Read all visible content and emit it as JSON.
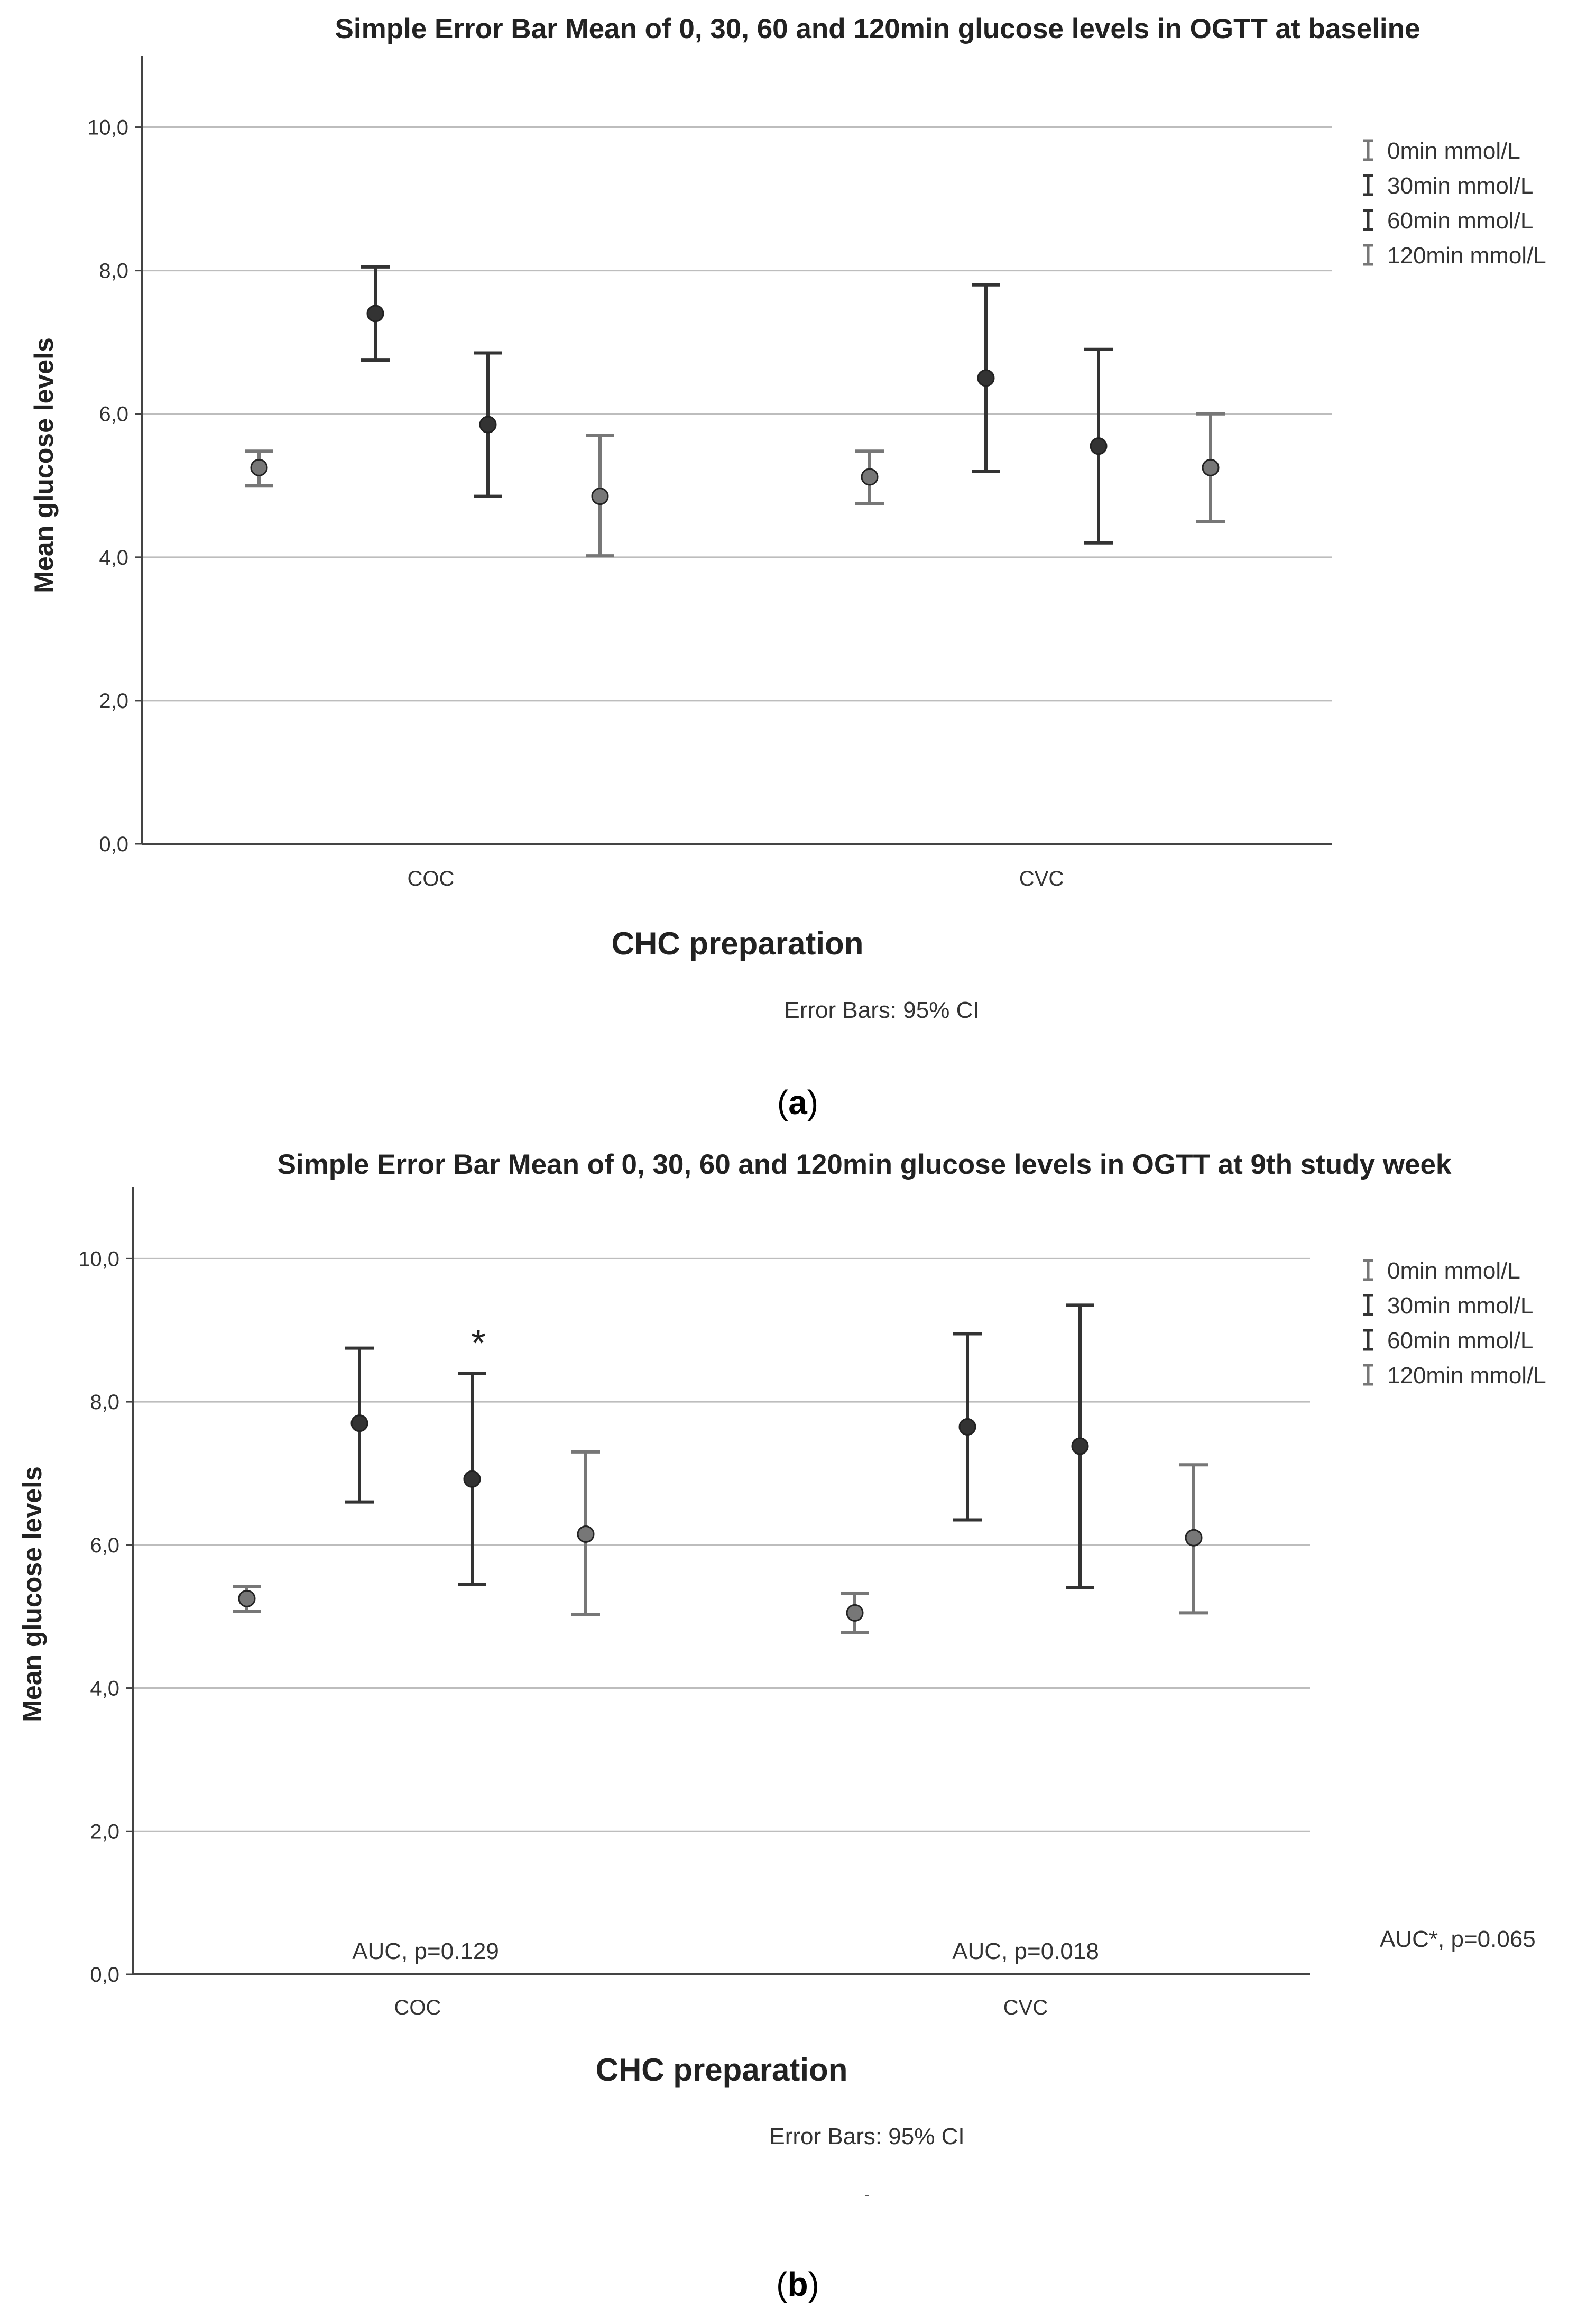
{
  "chart_data": [
    {
      "type": "errorbar",
      "panel_label": "a",
      "title": "Simple Error Bar Mean of 0, 30, 60 and 120min glucose levels in OGTT at baseline",
      "xlabel": "CHC preparation",
      "ylabel": "Mean glucose levels",
      "ylim": [
        0,
        11
      ],
      "yticks": [
        0,
        2,
        4,
        6,
        8,
        10
      ],
      "ytick_labels": [
        "0,0",
        "2,0",
        "4,0",
        "6,0",
        "8,0",
        "10,0"
      ],
      "grid": true,
      "legend_position": "right",
      "categories": [
        "COC",
        "CVC"
      ],
      "footnote": "Error Bars: 95% CI",
      "series": [
        {
          "name": "0min mmol/L",
          "color": "#777777",
          "mean": [
            5.25,
            5.12
          ],
          "lower": [
            5.0,
            4.75
          ],
          "upper": [
            5.48,
            5.48
          ]
        },
        {
          "name": "30min mmol/L",
          "color": "#333333",
          "mean": [
            7.4,
            6.5
          ],
          "lower": [
            6.75,
            5.2
          ],
          "upper": [
            8.05,
            7.8
          ]
        },
        {
          "name": "60min mmol/L",
          "color": "#333333",
          "mean": [
            5.85,
            5.55
          ],
          "lower": [
            4.85,
            4.2
          ],
          "upper": [
            6.85,
            6.9
          ]
        },
        {
          "name": "120min mmol/L",
          "color": "#777777",
          "mean": [
            4.85,
            5.25
          ],
          "lower": [
            4.02,
            4.5
          ],
          "upper": [
            5.7,
            6.0
          ]
        }
      ],
      "annotations": []
    },
    {
      "type": "errorbar",
      "panel_label": "b",
      "title": "Simple Error Bar Mean of 0, 30, 60 and 120min glucose levels in OGTT at 9th study week",
      "xlabel": "CHC preparation",
      "ylabel": "Mean glucose levels",
      "ylim": [
        0,
        11
      ],
      "yticks": [
        0,
        2,
        4,
        6,
        8,
        10
      ],
      "ytick_labels": [
        "0,0",
        "2,0",
        "4,0",
        "6,0",
        "8,0",
        "10,0"
      ],
      "grid": true,
      "legend_position": "right",
      "categories": [
        "COC",
        "CVC"
      ],
      "footnote": "Error Bars: 95% CI",
      "series": [
        {
          "name": "0min mmol/L",
          "color": "#777777",
          "mean": [
            5.25,
            5.05
          ],
          "lower": [
            5.07,
            4.78
          ],
          "upper": [
            5.42,
            5.32
          ]
        },
        {
          "name": "30min mmol/L",
          "color": "#333333",
          "mean": [
            7.7,
            7.65
          ],
          "lower": [
            6.6,
            6.35
          ],
          "upper": [
            8.75,
            8.95
          ]
        },
        {
          "name": "60min mmol/L",
          "color": "#333333",
          "mean": [
            6.92,
            7.38
          ],
          "lower": [
            5.45,
            5.4
          ],
          "upper": [
            8.4,
            9.35
          ]
        },
        {
          "name": "120min mmol/L",
          "color": "#777777",
          "mean": [
            6.15,
            6.1
          ],
          "lower": [
            5.03,
            5.05
          ],
          "upper": [
            7.3,
            7.12
          ]
        }
      ],
      "annotations": [
        {
          "text": "*",
          "category": 0,
          "series": 2,
          "note": "significance marker"
        },
        {
          "text": "AUC, p=0.129",
          "category": 0
        },
        {
          "text": "AUC, p=0.018",
          "category": 1
        },
        {
          "text": "AUC*, p=0.065",
          "position": "right"
        }
      ],
      "stray_mark": "-"
    }
  ]
}
